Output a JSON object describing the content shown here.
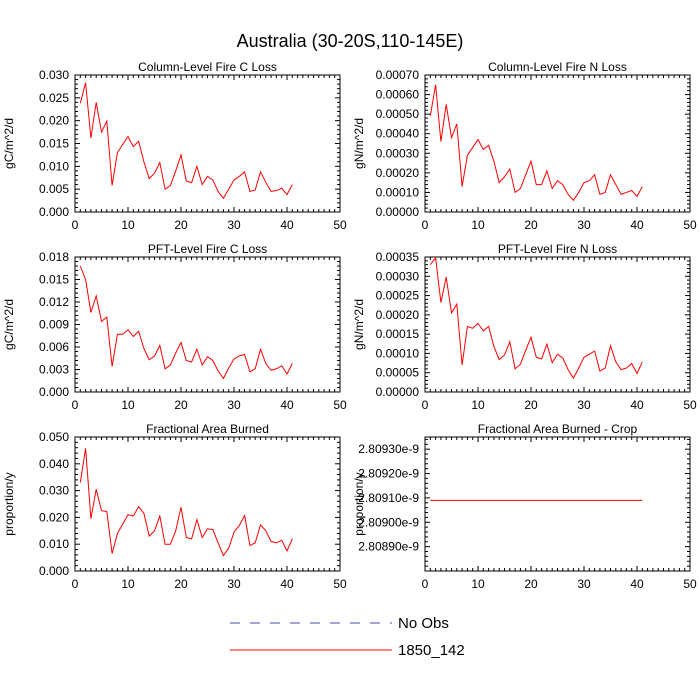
{
  "figure": {
    "title": "Australia (30-20S,110-145E)"
  },
  "legend": {
    "entries": [
      {
        "label": "No Obs",
        "color": "#4a4aa8",
        "style": "dashed"
      },
      {
        "label": "1850_142",
        "color": "#ff0000",
        "style": "solid"
      }
    ]
  },
  "chart_data": [
    {
      "type": "line",
      "title": "Column-Level Fire C Loss",
      "xlabel": "",
      "ylabel": "gC/m^2/d",
      "xlim": [
        0,
        50
      ],
      "ylim": [
        0,
        0.03
      ],
      "xticks": [
        0,
        10,
        20,
        30,
        40,
        50
      ],
      "yticks": [
        0,
        0.005,
        0.01,
        0.015,
        0.02,
        0.025,
        0.03
      ],
      "ytick_labels": [
        "0.000",
        "0.005",
        "0.010",
        "0.015",
        "0.020",
        "0.025",
        "0.030"
      ],
      "series": [
        {
          "name": "1850_142",
          "color": "#ff0000",
          "x": [
            1,
            2,
            3,
            4,
            5,
            6,
            7,
            8,
            9,
            10,
            11,
            12,
            13,
            14,
            15,
            16,
            17,
            18,
            19,
            20,
            21,
            22,
            23,
            24,
            25,
            26,
            27,
            28,
            29,
            30,
            31,
            32,
            33,
            34,
            35,
            36,
            37,
            38,
            39,
            40,
            41
          ],
          "y": [
            0.0238,
            0.0283,
            0.0162,
            0.024,
            0.0175,
            0.0199,
            0.0058,
            0.013,
            0.0148,
            0.0165,
            0.0143,
            0.0155,
            0.011,
            0.0073,
            0.0085,
            0.0108,
            0.005,
            0.0058,
            0.009,
            0.0125,
            0.0068,
            0.0064,
            0.01,
            0.006,
            0.0078,
            0.007,
            0.0045,
            0.003,
            0.005,
            0.007,
            0.0078,
            0.0088,
            0.0045,
            0.0048,
            0.0088,
            0.0065,
            0.0045,
            0.0047,
            0.0052,
            0.0038,
            0.006
          ]
        }
      ]
    },
    {
      "type": "line",
      "title": "Column-Level Fire N Loss",
      "xlabel": "",
      "ylabel": "gN/m^2/d",
      "xlim": [
        0,
        50
      ],
      "ylim": [
        0,
        0.0007
      ],
      "xticks": [
        0,
        10,
        20,
        30,
        40,
        50
      ],
      "yticks": [
        0,
        0.0001,
        0.0002,
        0.0003,
        0.0004,
        0.0005,
        0.0006,
        0.0007
      ],
      "ytick_labels": [
        "0.00000",
        "0.00010",
        "0.00020",
        "0.00030",
        "0.00040",
        "0.00050",
        "0.00060",
        "0.00070"
      ],
      "series": [
        {
          "name": "1850_142",
          "color": "#ff0000",
          "x": [
            1,
            2,
            3,
            4,
            5,
            6,
            7,
            8,
            9,
            10,
            11,
            12,
            13,
            14,
            15,
            16,
            17,
            18,
            19,
            20,
            21,
            22,
            23,
            24,
            25,
            26,
            27,
            28,
            29,
            30,
            31,
            32,
            33,
            34,
            35,
            36,
            37,
            38,
            39,
            40,
            41
          ],
          "y": [
            0.00049,
            0.00065,
            0.00036,
            0.00055,
            0.00038,
            0.00045,
            0.00013,
            0.00029,
            0.00033,
            0.00037,
            0.00032,
            0.00034,
            0.00026,
            0.00015,
            0.00018,
            0.00022,
            0.0001,
            0.00012,
            0.00019,
            0.00026,
            0.00014,
            0.00014,
            0.00021,
            0.00012,
            0.00016,
            0.00014,
            9e-05,
            6e-05,
            0.0001,
            0.00015,
            0.00016,
            0.00019,
            9e-05,
            0.0001,
            0.00019,
            0.00014,
            9e-05,
            0.0001,
            0.00011,
            8e-05,
            0.00013
          ]
        }
      ]
    },
    {
      "type": "line",
      "title": "PFT-Level Fire C Loss",
      "xlabel": "",
      "ylabel": "gC/m^2/d",
      "xlim": [
        0,
        50
      ],
      "ylim": [
        0,
        0.018
      ],
      "xticks": [
        0,
        10,
        20,
        30,
        40,
        50
      ],
      "yticks": [
        0,
        0.003,
        0.006,
        0.009,
        0.012,
        0.015,
        0.018
      ],
      "ytick_labels": [
        "0.000",
        "0.003",
        "0.006",
        "0.009",
        "0.012",
        "0.015",
        "0.018"
      ],
      "series": [
        {
          "name": "1850_142",
          "color": "#ff0000",
          "x": [
            1,
            2,
            3,
            4,
            5,
            6,
            7,
            8,
            9,
            10,
            11,
            12,
            13,
            14,
            15,
            16,
            17,
            18,
            19,
            20,
            21,
            22,
            23,
            24,
            25,
            26,
            27,
            28,
            29,
            30,
            31,
            32,
            33,
            34,
            35,
            36,
            37,
            38,
            39,
            40,
            41
          ],
          "y": [
            0.0168,
            0.015,
            0.0106,
            0.0128,
            0.0094,
            0.01,
            0.0034,
            0.0077,
            0.0077,
            0.0083,
            0.0074,
            0.0081,
            0.0058,
            0.0043,
            0.0048,
            0.0062,
            0.0031,
            0.0036,
            0.0052,
            0.0066,
            0.0042,
            0.004,
            0.0057,
            0.0036,
            0.0047,
            0.0042,
            0.0028,
            0.0018,
            0.0032,
            0.0044,
            0.0048,
            0.005,
            0.0027,
            0.0031,
            0.0057,
            0.0038,
            0.0029,
            0.0031,
            0.0035,
            0.0024,
            0.0038
          ]
        }
      ]
    },
    {
      "type": "line",
      "title": "PFT-Level Fire N Loss",
      "xlabel": "",
      "ylabel": "gN/m^2/d",
      "xlim": [
        0,
        50
      ],
      "ylim": [
        0,
        0.00035
      ],
      "xticks": [
        0,
        10,
        20,
        30,
        40,
        50
      ],
      "yticks": [
        0,
        5e-05,
        0.0001,
        0.00015,
        0.0002,
        0.00025,
        0.0003,
        0.00035
      ],
      "ytick_labels": [
        "0.00000",
        "0.00005",
        "0.00010",
        "0.00015",
        "0.00020",
        "0.00025",
        "0.00030",
        "0.00035"
      ],
      "series": [
        {
          "name": "1850_142",
          "color": "#ff0000",
          "x": [
            1,
            2,
            3,
            4,
            5,
            6,
            7,
            8,
            9,
            10,
            11,
            12,
            13,
            14,
            15,
            16,
            17,
            18,
            19,
            20,
            21,
            22,
            23,
            24,
            25,
            26,
            27,
            28,
            29,
            30,
            31,
            32,
            33,
            34,
            35,
            36,
            37,
            38,
            39,
            40,
            41
          ],
          "y": [
            0.00033,
            0.000348,
            0.000232,
            0.000298,
            0.000205,
            0.000228,
            7e-05,
            0.00017,
            0.000165,
            0.000178,
            0.000158,
            0.00017,
            0.000118,
            8.4e-05,
            9.6e-05,
            0.00013,
            6e-05,
            7.2e-05,
            0.000108,
            0.000142,
            9e-05,
            8.6e-05,
            0.000124,
            7.6e-05,
            9.8e-05,
            8.8e-05,
            5.8e-05,
            3.6e-05,
            6.2e-05,
            9e-05,
            9.8e-05,
            0.000106,
            5.4e-05,
            6.2e-05,
            0.00012,
            7.8e-05,
            5.8e-05,
            6.2e-05,
            7.4e-05,
            4.8e-05,
            7.8e-05
          ]
        }
      ]
    },
    {
      "type": "line",
      "title": "Fractional Area Burned",
      "xlabel": "",
      "ylabel": "proportion/y",
      "xlim": [
        0,
        50
      ],
      "ylim": [
        0,
        0.05
      ],
      "xticks": [
        0,
        10,
        20,
        30,
        40,
        50
      ],
      "yticks": [
        0,
        0.01,
        0.02,
        0.03,
        0.04,
        0.05
      ],
      "ytick_labels": [
        "0.000",
        "0.010",
        "0.020",
        "0.030",
        "0.040",
        "0.050"
      ],
      "series": [
        {
          "name": "1850_142",
          "color": "#ff0000",
          "x": [
            1,
            2,
            3,
            4,
            5,
            6,
            7,
            8,
            9,
            10,
            11,
            12,
            13,
            14,
            15,
            16,
            17,
            18,
            19,
            20,
            21,
            22,
            23,
            24,
            25,
            26,
            27,
            28,
            29,
            30,
            31,
            32,
            33,
            34,
            35,
            36,
            37,
            38,
            39,
            40,
            41
          ],
          "y": [
            0.033,
            0.0458,
            0.0195,
            0.0305,
            0.0225,
            0.0222,
            0.0065,
            0.014,
            0.0175,
            0.021,
            0.0205,
            0.024,
            0.0215,
            0.013,
            0.015,
            0.0205,
            0.01,
            0.01,
            0.015,
            0.0238,
            0.0125,
            0.012,
            0.0192,
            0.0125,
            0.0157,
            0.0155,
            0.0105,
            0.0058,
            0.0085,
            0.0145,
            0.017,
            0.0207,
            0.0095,
            0.0105,
            0.0172,
            0.015,
            0.011,
            0.0105,
            0.0115,
            0.0075,
            0.012
          ]
        }
      ]
    },
    {
      "type": "line",
      "title": "Fractional Area Burned - Crop",
      "xlabel": "",
      "ylabel": "proportion/y",
      "xlim": [
        0,
        50
      ],
      "ylim": [
        2.8088,
        2.80935
      ],
      "y_unit_note": "values are in units of 1e-9",
      "xticks": [
        0,
        10,
        20,
        30,
        40,
        50
      ],
      "yticks": [
        2.8089,
        2.809,
        2.8091,
        2.8092,
        2.8093
      ],
      "ytick_labels": [
        "2.80890e-9",
        "2.80900e-9",
        "2.80910e-9",
        "2.80920e-9",
        "2.80930e-9"
      ],
      "series": [
        {
          "name": "1850_142",
          "color": "#ff0000",
          "x": [
            1,
            41
          ],
          "y": [
            2.80909,
            2.80909
          ]
        }
      ]
    }
  ]
}
